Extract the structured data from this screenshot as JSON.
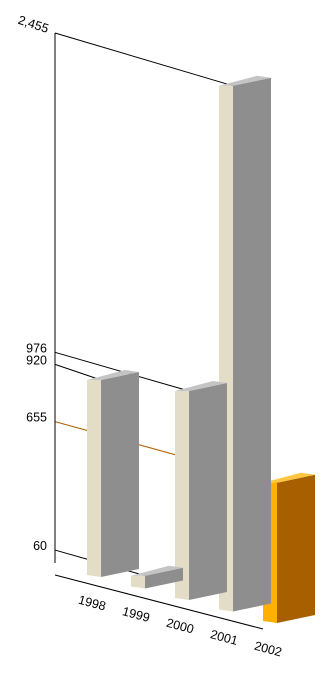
{
  "chart_data": {
    "type": "bar",
    "style": "3d-perspective-columns",
    "categories": [
      "1998",
      "1999",
      "2000",
      "2001",
      "2002"
    ],
    "values": [
      920,
      60,
      976,
      2455,
      655
    ],
    "highlighted": "2002",
    "value_labels": [
      "2,455",
      "976",
      "920",
      "655",
      "60"
    ],
    "grid": false,
    "legend": "none",
    "colors": {
      "bar_front": "#e3dcc6",
      "bar_side": "#8e8e8e",
      "bar_top": "#c4c4c4",
      "highlight_front": "#ffb000",
      "highlight_side": "#a85f00",
      "highlight_top": "#ffc640",
      "highlight_text": "#b06000",
      "axis": "#000000"
    }
  }
}
